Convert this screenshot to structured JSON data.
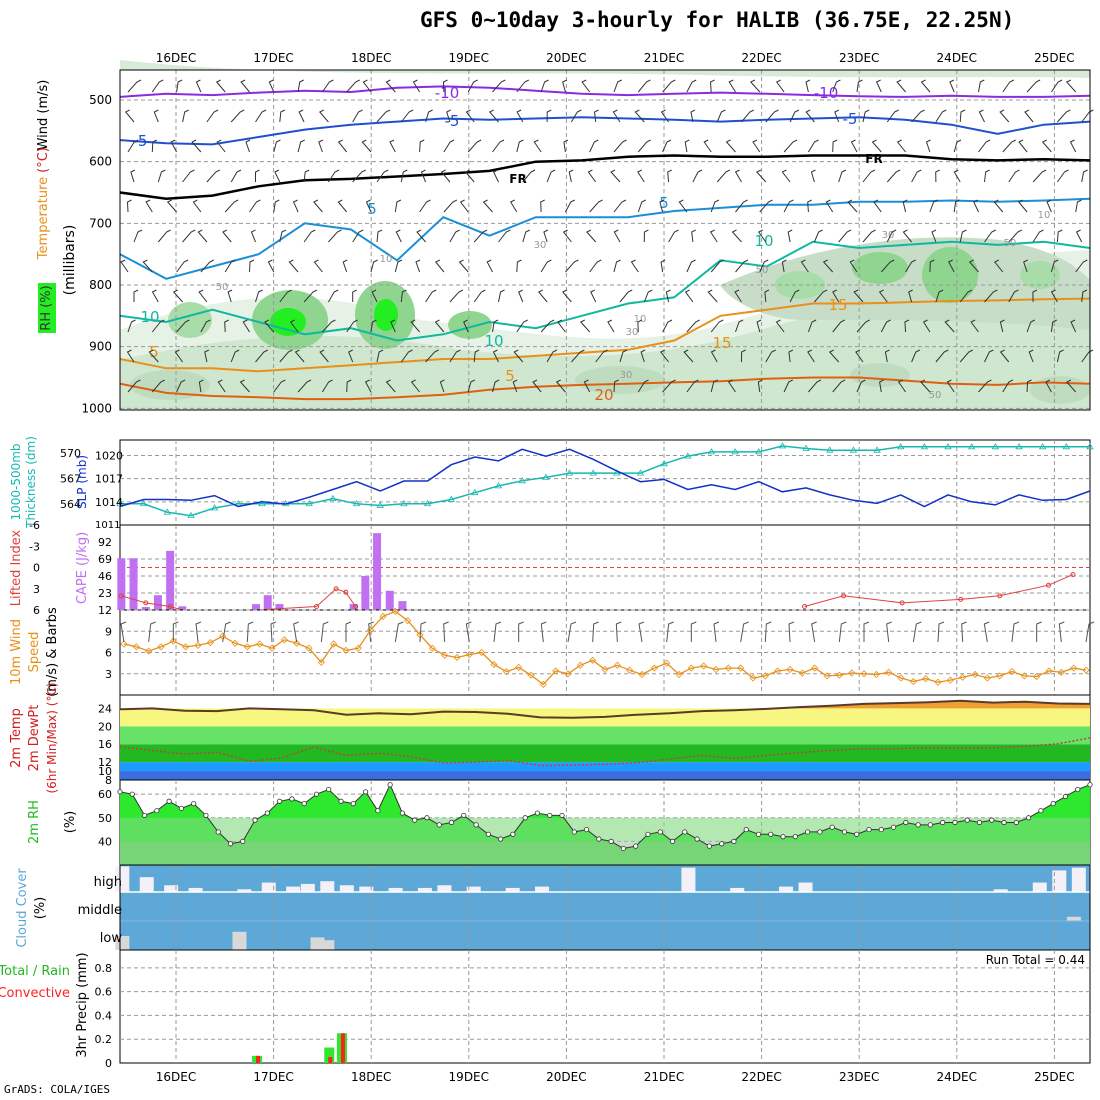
{
  "title": "GFS 0~10day 3-hourly for HALIB (36.75E, 22.25N)",
  "credit": "GrADS: COLA/IGES",
  "dates": [
    "16DEC",
    "17DEC",
    "18DEC",
    "19DEC",
    "20DEC",
    "21DEC",
    "22DEC",
    "23DEC",
    "24DEC",
    "25DEC"
  ],
  "labels": {
    "p1_wind": "Wind (m/s)",
    "p1_temp_a": "Temperature",
    "p1_temp_b": "(°C)",
    "p1_rh": "RH (%)",
    "p1_mb": "(millibars)",
    "p2_thick": "1000-500mb",
    "p2_thick2": "Thickness (dm)",
    "p2_slp": "SLP (mb)",
    "p3_li": "Lifted Index",
    "p3_cape": "CAPE (J/kg)",
    "p4_a": "10m Wind",
    "p4_b": "Speed",
    "p4_c": "(m/s) & Barbs",
    "p5_a": "2m Temp",
    "p5_b": "2m DewPt",
    "p5_c": "(6hr Min/Max) (°C)",
    "p6_a": "2m RH",
    "p6_b": "(%)",
    "p7_a": "Cloud Cover",
    "p7_b": "(%)",
    "p7_high": "high",
    "p7_middle": "middle",
    "p7_low": "low",
    "p8_a": "Total / Rain",
    "p8_b": "Convective",
    "p8_c": "3hr Precip (mm)",
    "run_total": "Run Total = 0.44"
  },
  "chart_data": [
    {
      "type": "contour",
      "panel": "upper-air",
      "ylabel": "millibars",
      "ylim": [
        1000,
        450
      ],
      "yticks": [
        1000,
        900,
        800,
        700,
        600,
        500
      ],
      "contour_labels": [
        "-10",
        "-10",
        "-5",
        "-5",
        "-5",
        "FR",
        "FR",
        "5",
        "5",
        "10",
        "10",
        "15",
        "5",
        "5",
        "10",
        "15",
        "20",
        "30",
        "50",
        "30",
        "10",
        "10",
        "50",
        "30",
        "50",
        "50",
        "10",
        "30"
      ],
      "rh_shading_levels": [
        30,
        50,
        70,
        90
      ],
      "isotherms": [
        {
          "label": "-10",
          "color": "#8a2be2",
          "p": [
            495,
            490,
            492,
            488,
            485,
            487,
            480,
            478,
            480,
            485,
            490,
            492,
            490,
            488,
            490,
            492,
            494,
            495,
            493,
            495,
            495,
            493
          ]
        },
        {
          "label": "-5",
          "color": "#1f50d0",
          "p": [
            565,
            570,
            572,
            560,
            548,
            540,
            535,
            530,
            532,
            530,
            528,
            530,
            532,
            535,
            532,
            530,
            528,
            532,
            540,
            555,
            540,
            535
          ]
        },
        {
          "label": "FR",
          "color": "#000000",
          "p": [
            650,
            660,
            655,
            640,
            630,
            628,
            624,
            620,
            615,
            600,
            598,
            592,
            590,
            592,
            592,
            590,
            590,
            590,
            596,
            598,
            596,
            598
          ]
        },
        {
          "label": "5",
          "color": "#1b8fd6",
          "p": [
            750,
            790,
            770,
            750,
            700,
            710,
            760,
            690,
            720,
            690,
            690,
            690,
            680,
            675,
            670,
            670,
            665,
            665,
            663,
            665,
            663,
            660
          ]
        },
        {
          "label": "10",
          "color": "#10b8a0",
          "p": [
            850,
            860,
            840,
            860,
            880,
            870,
            890,
            880,
            860,
            870,
            850,
            830,
            820,
            760,
            770,
            730,
            740,
            735,
            730,
            735,
            730,
            740
          ]
        },
        {
          "label": "15",
          "color": "#e8901a",
          "p": [
            920,
            935,
            935,
            940,
            935,
            930,
            925,
            920,
            920,
            915,
            910,
            905,
            890,
            850,
            840,
            830,
            830,
            828,
            826,
            825,
            823,
            822
          ]
        },
        {
          "label": "20",
          "color": "#e06010",
          "p": [
            960,
            975,
            980,
            982,
            985,
            985,
            982,
            978,
            970,
            965,
            962,
            960,
            958,
            956,
            952,
            950,
            950,
            955,
            960,
            962,
            958,
            960
          ]
        }
      ]
    },
    {
      "type": "line",
      "panel": "thickness-slp",
      "left_axis": {
        "label": "1000-500mb Thickness (dm)",
        "ticks": [
          564,
          567,
          570
        ],
        "lim": [
          561.5,
          571.5
        ]
      },
      "right_axis": {
        "label": "SLP (mb)",
        "ticks": [
          1014,
          1017,
          1020
        ],
        "lim": [
          1011,
          1022
        ]
      },
      "series": [
        {
          "name": "Thickness",
          "color": "#18b8b0",
          "values": [
            564,
            564,
            563,
            562.6,
            563.5,
            564,
            564,
            564,
            564,
            564.6,
            564,
            563.8,
            564,
            564,
            564.5,
            565.3,
            566.1,
            566.7,
            567.1,
            567.6,
            567.6,
            567.6,
            567.6,
            568.7,
            569.6,
            570.1,
            570.1,
            570.1,
            570.8,
            570.5,
            570.3,
            570.3,
            570.3,
            570.7,
            570.7,
            570.7,
            570.7,
            570.7,
            570.7,
            570.7,
            570.7,
            570.7
          ]
        },
        {
          "name": "SLP",
          "color": "#1030c8",
          "values": [
            1013.4,
            1014.3,
            1014.3,
            1014.2,
            1014.8,
            1013.4,
            1014.0,
            1013.7,
            1014.6,
            1015.6,
            1016.6,
            1015.4,
            1016.7,
            1016.7,
            1018.8,
            1019.8,
            1019.3,
            1020.8,
            1019.9,
            1020.8,
            1019.5,
            1018.0,
            1016.6,
            1016.9,
            1015.6,
            1016.2,
            1015.6,
            1016.6,
            1015.3,
            1015.8,
            1014.9,
            1014.2,
            1013.8,
            1014.9,
            1013.4,
            1014.9,
            1014.0,
            1013.6,
            1014.9,
            1014.2,
            1014.3,
            1015.4
          ]
        }
      ]
    },
    {
      "type": "bar",
      "panel": "cape-li",
      "left_axis": {
        "label": "Lifted Index",
        "ticks": [
          -6,
          -3,
          0,
          3,
          6
        ]
      },
      "right_axis": {
        "label": "CAPE (J/kg)",
        "ticks": [
          23,
          46,
          69,
          92
        ]
      },
      "cape_bars": [
        {
          "d": 0.0,
          "v": 70
        },
        {
          "d": 0.125,
          "v": 70
        },
        {
          "d": 0.25,
          "v": 4
        },
        {
          "d": 0.375,
          "v": 20
        },
        {
          "d": 0.5,
          "v": 80
        },
        {
          "d": 0.625,
          "v": 5
        },
        {
          "d": 1.38,
          "v": 8
        },
        {
          "d": 1.5,
          "v": 20
        },
        {
          "d": 1.62,
          "v": 8
        },
        {
          "d": 2.38,
          "v": 8
        },
        {
          "d": 2.5,
          "v": 46
        },
        {
          "d": 2.62,
          "v": 104
        },
        {
          "d": 2.75,
          "v": 26
        },
        {
          "d": 2.88,
          "v": 12
        }
      ],
      "lifted_index": [
        {
          "d": 0.0,
          "v": 4
        },
        {
          "d": 0.25,
          "v": 5
        },
        {
          "d": 0.5,
          "v": 5.5
        },
        {
          "d": 0.75,
          "v": 6.5
        },
        {
          "d": 2.0,
          "v": 5.5
        },
        {
          "d": 2.2,
          "v": 3
        },
        {
          "d": 2.3,
          "v": 3.5
        },
        {
          "d": 2.4,
          "v": 5.5
        },
        {
          "d": 7.0,
          "v": 5.5
        },
        {
          "d": 7.4,
          "v": 4
        },
        {
          "d": 8.0,
          "v": 5
        },
        {
          "d": 8.6,
          "v": 4.5
        },
        {
          "d": 9.0,
          "v": 4
        },
        {
          "d": 9.5,
          "v": 2.5
        },
        {
          "d": 9.75,
          "v": 1
        }
      ]
    },
    {
      "type": "line",
      "panel": "wind10m",
      "ylabel": "(m/s)",
      "ylim": [
        0,
        12
      ],
      "yticks": [
        3,
        6,
        9,
        12
      ],
      "series": [
        {
          "name": "Speed",
          "color": "#e8901a",
          "values": [
            7.2,
            6.8,
            6.2,
            6.8,
            7.6,
            6.8,
            7.0,
            7.4,
            8.3,
            7.3,
            6.8,
            7.2,
            6.6,
            7.8,
            7.3,
            6.6,
            4.6,
            7.2,
            6.3,
            6.6,
            9.2,
            11.1,
            11.8,
            10.5,
            8.5,
            6.6,
            5.6,
            5.3,
            5.7,
            6.0,
            4.3,
            3.3,
            3.9,
            2.8,
            1.5,
            3.4,
            3.0,
            4.2,
            4.9,
            3.6,
            4.2,
            3.5,
            2.9,
            3.8,
            4.5,
            2.9,
            3.8,
            4.1,
            3.6,
            3.8,
            3.8,
            2.4,
            2.7,
            3.4,
            3.6,
            3.1,
            3.8,
            2.7,
            2.8,
            3.1,
            3.0,
            2.9,
            3.2,
            2.4,
            1.9,
            2.3,
            1.8,
            2.1,
            2.5,
            2.9,
            2.4,
            2.7,
            3.3,
            2.7,
            2.6,
            3.4,
            3.2,
            3.8,
            3.5
          ]
        }
      ]
    },
    {
      "type": "area",
      "panel": "temp2m",
      "ylabel": "(°C)",
      "ylim": [
        8,
        27
      ],
      "yticks": [
        8,
        10,
        12,
        16,
        20,
        24
      ],
      "series": [
        {
          "name": "2m Temp",
          "color": "#5a3a2a",
          "values": [
            23.8,
            24.0,
            23.5,
            23.4,
            24.0,
            23.8,
            23.6,
            22.6,
            22.9,
            22.7,
            23.3,
            23.2,
            22.8,
            22.0,
            21.9,
            22.1,
            22.6,
            22.9,
            23.4,
            23.6,
            23.9,
            24.3,
            24.6,
            25.0,
            25.2,
            25.4,
            25.7,
            25.3,
            25.5,
            25.1,
            25.0
          ]
        },
        {
          "name": "2m DewPt",
          "color": "#c04040",
          "values": [
            15.4,
            14.6,
            13.8,
            14.2,
            12.2,
            12.9,
            15.4,
            13.5,
            14.0,
            13.2,
            11.8,
            12.0,
            12.4,
            11.2,
            11.3,
            11.5,
            11.9,
            12.7,
            13.5,
            12.8,
            13.5,
            14.1,
            14.6,
            15.0,
            15.0,
            15.2,
            15.1,
            15.2,
            15.5,
            16.1,
            17.4
          ]
        }
      ]
    },
    {
      "type": "area",
      "panel": "rh2m",
      "ylabel": "(%)",
      "ylim": [
        30,
        66
      ],
      "yticks": [
        40,
        50,
        60
      ],
      "series": [
        {
          "name": "2m RH",
          "color": "#2ee82e",
          "values": [
            61,
            60,
            51,
            53,
            57,
            54,
            56,
            51,
            44,
            39,
            40,
            49,
            52,
            57,
            58,
            56,
            60,
            62,
            57,
            56,
            61,
            53,
            64,
            52,
            49,
            50,
            47,
            48,
            51,
            47,
            43,
            41,
            43,
            50,
            52,
            51,
            51,
            44,
            45,
            41,
            40,
            37,
            38,
            43,
            44,
            40,
            44,
            41,
            38,
            39,
            40,
            45,
            43,
            43,
            42,
            42,
            44,
            44,
            46,
            44,
            43,
            45,
            45,
            46,
            48,
            47,
            47,
            48,
            48,
            49,
            48,
            49,
            48,
            48,
            50,
            53,
            56,
            59,
            62,
            64
          ]
        }
      ]
    },
    {
      "type": "bar",
      "panel": "cloud",
      "levels": [
        "high",
        "middle",
        "low"
      ],
      "high": [
        {
          "d": 0.0,
          "v": 95
        },
        {
          "d": 0.25,
          "v": 55
        },
        {
          "d": 0.5,
          "v": 25
        },
        {
          "d": 0.75,
          "v": 15
        },
        {
          "d": 1.25,
          "v": 10
        },
        {
          "d": 1.5,
          "v": 35
        },
        {
          "d": 1.75,
          "v": 20
        },
        {
          "d": 1.9,
          "v": 30
        },
        {
          "d": 2.1,
          "v": 40
        },
        {
          "d": 2.3,
          "v": 25
        },
        {
          "d": 2.5,
          "v": 20
        },
        {
          "d": 2.8,
          "v": 15
        },
        {
          "d": 3.1,
          "v": 15
        },
        {
          "d": 3.3,
          "v": 25
        },
        {
          "d": 3.6,
          "v": 20
        },
        {
          "d": 4.0,
          "v": 15
        },
        {
          "d": 4.3,
          "v": 20
        },
        {
          "d": 5.8,
          "v": 90
        },
        {
          "d": 6.3,
          "v": 15
        },
        {
          "d": 6.8,
          "v": 20
        },
        {
          "d": 7.0,
          "v": 35
        },
        {
          "d": 9.0,
          "v": 10
        },
        {
          "d": 9.4,
          "v": 35
        },
        {
          "d": 9.6,
          "v": 80
        },
        {
          "d": 9.8,
          "v": 90
        }
      ],
      "middle": [
        {
          "d": 9.75,
          "v": 15
        }
      ],
      "low": [
        {
          "d": 0.0,
          "v": 50
        },
        {
          "d": 1.2,
          "v": 65
        },
        {
          "d": 2.0,
          "v": 45
        },
        {
          "d": 2.1,
          "v": 35
        }
      ]
    },
    {
      "type": "bar",
      "panel": "precip",
      "ylim": [
        0,
        0.95
      ],
      "yticks": [
        0,
        0.2,
        0.4,
        0.6,
        0.8
      ],
      "series": [
        {
          "name": "Total",
          "color": "#2ee82e",
          "bars": [
            {
              "d": 1.38,
              "v": 0.06
            },
            {
              "d": 2.12,
              "v": 0.13
            },
            {
              "d": 2.25,
              "v": 0.25
            }
          ]
        },
        {
          "name": "Convective",
          "color": "#ff2020",
          "bars": [
            {
              "d": 1.38,
              "v": 0.06
            },
            {
              "d": 2.12,
              "v": 0.05
            },
            {
              "d": 2.25,
              "v": 0.25
            }
          ]
        }
      ]
    }
  ]
}
